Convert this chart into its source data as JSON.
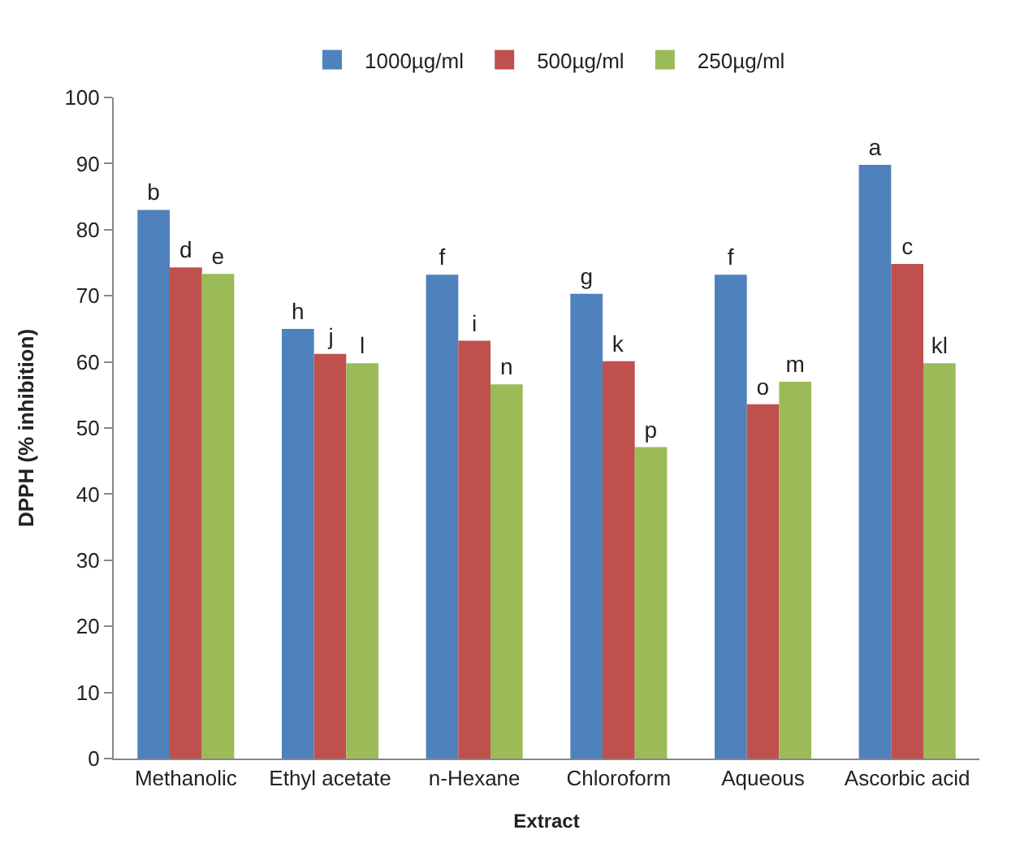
{
  "chart_data": {
    "type": "bar",
    "xlabel": "Extract",
    "ylabel": "DPPH (% inhibition)",
    "categories": [
      "Methanolic",
      "Ethyl acetate",
      "n-Hexane",
      "Chloroform",
      "Aqueous",
      "Ascorbic acid"
    ],
    "series": [
      {
        "name": "1000µg/ml",
        "color": "#4f81bd",
        "values": [
          83,
          65,
          73.2,
          70.3,
          73.2,
          89.8
        ],
        "value_labels": [
          "b",
          "h",
          "f",
          "g",
          "f",
          "a"
        ]
      },
      {
        "name": "500µg/ml",
        "color": "#c0504d",
        "values": [
          74.3,
          61.2,
          63.2,
          60.1,
          53.6,
          74.8
        ],
        "value_labels": [
          "d",
          "j",
          "i",
          "k",
          "o",
          "c"
        ]
      },
      {
        "name": "250µg/ml",
        "color": "#9bbb59",
        "values": [
          73.3,
          59.8,
          56.6,
          47.1,
          57,
          59.8
        ],
        "value_labels": [
          "e",
          "l",
          "n",
          "p",
          "m",
          "kl"
        ]
      }
    ],
    "ylim": [
      0,
      100
    ],
    "yticks": [
      0,
      10,
      20,
      30,
      40,
      50,
      60,
      70,
      80,
      90,
      100
    ],
    "legend": "top"
  }
}
